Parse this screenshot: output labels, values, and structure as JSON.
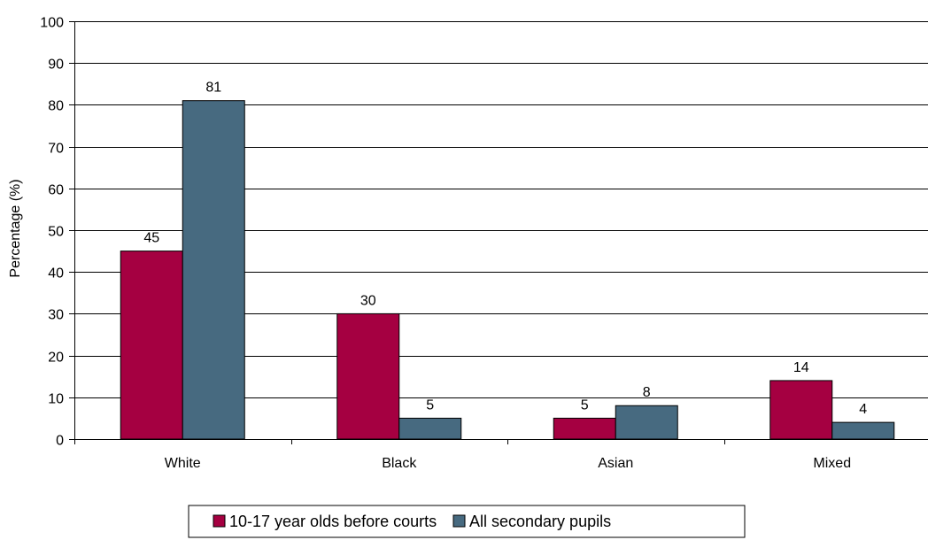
{
  "chart_data": {
    "type": "bar",
    "title": "",
    "xlabel": "",
    "ylabel": "Percentage (%)",
    "ylim": [
      0,
      100
    ],
    "yticks": [
      0,
      10,
      20,
      30,
      40,
      50,
      60,
      70,
      80,
      90,
      100
    ],
    "grid": true,
    "legend_position": "bottom",
    "categories": [
      "White",
      "Black",
      "Asian",
      "Mixed"
    ],
    "series": [
      {
        "name": "10-17 year olds before courts",
        "color": "#A50041",
        "values": [
          45,
          30,
          5,
          14
        ]
      },
      {
        "name": "All secondary pupils",
        "color": "#476A80",
        "values": [
          81,
          5,
          8,
          4
        ]
      }
    ]
  }
}
